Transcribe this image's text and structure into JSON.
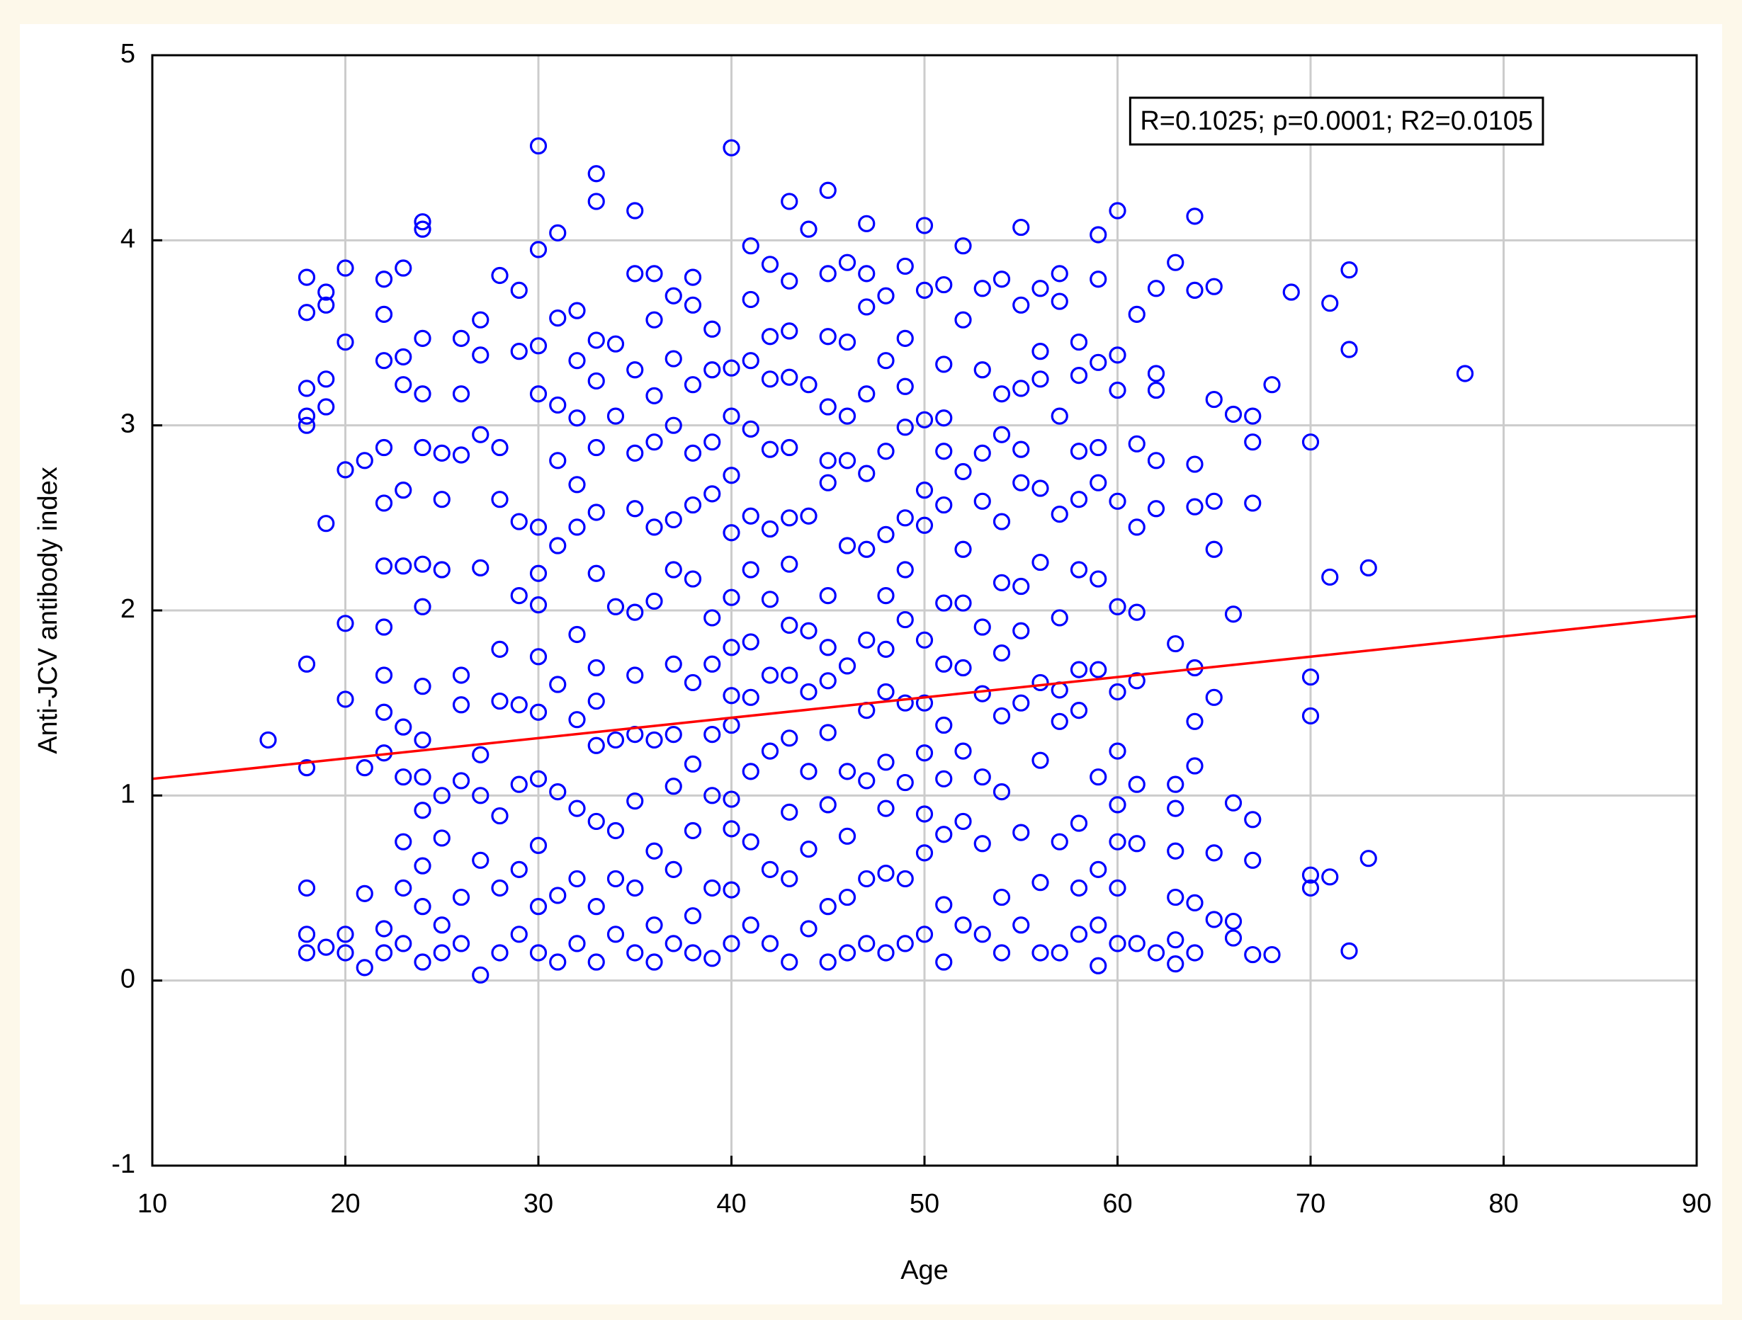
{
  "chart_data": {
    "type": "scatter",
    "x_label": "Age",
    "y_label": "Anti-JCV antibody index",
    "annotation": "R=0.1025; p=0.0001; R2=0.0105",
    "color": "#0000ff",
    "grid": true,
    "xlim": [
      10,
      90
    ],
    "xticks": [
      10,
      20,
      30,
      40,
      50,
      60,
      70,
      80,
      90
    ],
    "ylim": [
      -1,
      5
    ],
    "yticks": [
      -1,
      0,
      1,
      2,
      3,
      4,
      5
    ],
    "x": [
      16,
      18,
      18,
      18,
      18,
      18,
      18,
      18,
      18,
      18,
      18,
      19,
      19,
      19,
      19,
      19,
      19,
      20,
      20,
      20,
      20,
      20,
      20,
      20,
      21,
      21,
      21,
      21,
      22,
      22,
      22,
      22,
      22,
      22,
      22,
      22,
      22,
      22,
      22,
      22,
      23,
      23,
      23,
      23,
      23,
      23,
      23,
      23,
      23,
      23,
      24,
      24,
      24,
      24,
      24,
      24,
      24,
      24,
      24,
      24,
      24,
      24,
      24,
      24,
      25,
      25,
      25,
      25,
      25,
      25,
      25,
      26,
      26,
      26,
      26,
      26,
      26,
      26,
      26,
      27,
      27,
      27,
      27,
      27,
      27,
      27,
      27,
      28,
      28,
      28,
      28,
      28,
      28,
      28,
      28,
      29,
      29,
      29,
      29,
      29,
      29,
      29,
      29,
      30,
      30,
      30,
      30,
      30,
      30,
      30,
      30,
      30,
      30,
      30,
      30,
      30,
      31,
      31,
      31,
      31,
      31,
      31,
      31,
      31,
      31,
      32,
      32,
      32,
      32,
      32,
      32,
      32,
      32,
      32,
      32,
      33,
      33,
      33,
      33,
      33,
      33,
      33,
      33,
      33,
      33,
      33,
      33,
      33,
      34,
      34,
      34,
      34,
      34,
      34,
      34,
      35,
      35,
      35,
      35,
      35,
      35,
      35,
      35,
      35,
      35,
      35,
      36,
      36,
      36,
      36,
      36,
      36,
      36,
      36,
      36,
      36,
      37,
      37,
      37,
      37,
      37,
      37,
      37,
      37,
      37,
      37,
      38,
      38,
      38,
      38,
      38,
      38,
      38,
      38,
      38,
      38,
      38,
      39,
      39,
      39,
      39,
      39,
      39,
      39,
      39,
      39,
      39,
      40,
      40,
      40,
      40,
      40,
      40,
      40,
      40,
      40,
      40,
      40,
      40,
      40,
      41,
      41,
      41,
      41,
      41,
      41,
      41,
      41,
      41,
      41,
      41,
      42,
      42,
      42,
      42,
      42,
      42,
      42,
      42,
      42,
      42,
      43,
      43,
      43,
      43,
      43,
      43,
      43,
      43,
      43,
      43,
      43,
      43,
      43,
      44,
      44,
      44,
      44,
      44,
      44,
      44,
      44,
      45,
      45,
      45,
      45,
      45,
      45,
      45,
      45,
      45,
      45,
      45,
      45,
      45,
      46,
      46,
      46,
      46,
      46,
      46,
      46,
      46,
      46,
      46,
      47,
      47,
      47,
      47,
      47,
      47,
      47,
      47,
      47,
      47,
      47,
      48,
      48,
      48,
      48,
      48,
      48,
      48,
      48,
      48,
      48,
      48,
      49,
      49,
      49,
      49,
      49,
      49,
      49,
      49,
      49,
      49,
      49,
      50,
      50,
      50,
      50,
      50,
      50,
      50,
      50,
      50,
      50,
      50,
      51,
      51,
      51,
      51,
      51,
      51,
      51,
      51,
      51,
      51,
      51,
      51,
      52,
      52,
      52,
      52,
      52,
      52,
      52,
      52,
      52,
      53,
      53,
      53,
      53,
      53,
      53,
      53,
      53,
      53,
      54,
      54,
      54,
      54,
      54,
      54,
      54,
      54,
      54,
      54,
      55,
      55,
      55,
      55,
      55,
      55,
      55,
      55,
      55,
      55,
      56,
      56,
      56,
      56,
      56,
      56,
      56,
      56,
      56,
      57,
      57,
      57,
      57,
      57,
      57,
      57,
      57,
      57,
      58,
      58,
      58,
      58,
      58,
      58,
      58,
      58,
      58,
      58,
      59,
      59,
      59,
      59,
      59,
      59,
      59,
      59,
      59,
      59,
      59,
      60,
      60,
      60,
      60,
      60,
      60,
      60,
      60,
      60,
      60,
      60,
      61,
      61,
      61,
      61,
      61,
      61,
      61,
      61,
      62,
      62,
      62,
      62,
      62,
      62,
      63,
      63,
      63,
      63,
      63,
      63,
      63,
      63,
      64,
      64,
      64,
      64,
      64,
      64,
      64,
      64,
      64,
      65,
      65,
      65,
      65,
      65,
      65,
      65,
      66,
      66,
      66,
      66,
      66,
      67,
      67,
      67,
      67,
      67,
      67,
      68,
      68,
      69,
      70,
      70,
      70,
      70,
      70,
      71,
      71,
      71,
      72,
      72,
      72,
      73,
      73,
      78
    ],
    "values": [
      1.3,
      3.8,
      3.61,
      3.2,
      3.05,
      3.0,
      1.71,
      1.15,
      0.5,
      0.25,
      0.15,
      3.72,
      3.65,
      3.25,
      3.1,
      2.47,
      0.18,
      3.85,
      3.45,
      2.76,
      1.93,
      1.52,
      0.25,
      0.15,
      2.81,
      1.15,
      0.47,
      0.07,
      3.79,
      3.6,
      3.35,
      2.88,
      2.58,
      2.24,
      1.91,
      1.65,
      1.45,
      1.23,
      0.28,
      0.15,
      3.85,
      3.37,
      3.22,
      2.65,
      2.24,
      1.37,
      1.1,
      0.75,
      0.5,
      0.2,
      4.1,
      4.06,
      3.47,
      3.17,
      2.88,
      2.25,
      2.02,
      1.59,
      1.3,
      1.1,
      0.92,
      0.62,
      0.4,
      0.1,
      2.85,
      2.6,
      2.22,
      1.0,
      0.77,
      0.3,
      0.15,
      3.47,
      3.17,
      2.84,
      1.65,
      1.49,
      1.08,
      0.45,
      0.2,
      3.57,
      3.38,
      2.95,
      2.23,
      1.22,
      1.0,
      0.65,
      0.03,
      3.81,
      2.88,
      2.6,
      1.79,
      1.51,
      0.89,
      0.5,
      0.15,
      3.73,
      3.4,
      2.48,
      2.08,
      1.49,
      1.06,
      0.6,
      0.25,
      4.51,
      3.95,
      3.43,
      3.17,
      2.45,
      2.2,
      2.03,
      1.75,
      1.45,
      1.09,
      0.73,
      0.4,
      0.15,
      4.04,
      3.58,
      3.11,
      2.81,
      2.35,
      1.6,
      1.02,
      0.46,
      0.1,
      3.62,
      3.35,
      3.04,
      2.68,
      2.45,
      1.87,
      1.41,
      0.93,
      0.55,
      0.2,
      4.36,
      4.21,
      3.46,
      3.24,
      2.88,
      2.53,
      2.2,
      1.69,
      1.51,
      1.27,
      0.86,
      0.4,
      0.1,
      3.44,
      3.05,
      2.02,
      1.3,
      0.81,
      0.55,
      0.25,
      4.16,
      3.82,
      3.3,
      2.85,
      2.55,
      1.99,
      1.65,
      1.33,
      0.97,
      0.5,
      0.15,
      3.82,
      3.57,
      3.16,
      2.91,
      2.45,
      2.05,
      1.3,
      0.7,
      0.3,
      0.1,
      3.7,
      3.36,
      3.0,
      2.49,
      2.22,
      1.71,
      1.33,
      1.05,
      0.6,
      0.2,
      3.8,
      3.65,
      3.22,
      2.85,
      2.57,
      2.17,
      1.61,
      1.17,
      0.81,
      0.35,
      0.15,
      3.52,
      3.3,
      2.91,
      2.63,
      1.96,
      1.71,
      1.33,
      1.0,
      0.5,
      0.12,
      4.5,
      3.31,
      3.05,
      2.73,
      2.42,
      2.07,
      1.8,
      1.54,
      1.38,
      0.98,
      0.82,
      0.49,
      0.2,
      3.97,
      3.68,
      3.35,
      2.98,
      2.51,
      2.22,
      1.83,
      1.53,
      1.13,
      0.75,
      0.3,
      3.87,
      3.48,
      3.25,
      2.87,
      2.44,
      2.06,
      1.65,
      1.24,
      0.6,
      0.2,
      4.21,
      3.78,
      3.51,
      3.26,
      2.88,
      2.5,
      2.25,
      1.92,
      1.65,
      1.31,
      0.91,
      0.55,
      0.1,
      4.06,
      3.22,
      2.51,
      1.89,
      1.56,
      1.13,
      0.71,
      0.28,
      4.27,
      3.82,
      3.48,
      3.1,
      2.81,
      2.69,
      2.08,
      1.8,
      1.62,
      1.34,
      0.95,
      0.4,
      0.1,
      3.88,
      3.45,
      3.05,
      2.81,
      2.35,
      1.7,
      1.13,
      0.78,
      0.45,
      0.15,
      4.09,
      3.82,
      3.64,
      3.17,
      2.74,
      2.33,
      1.84,
      1.46,
      1.08,
      0.55,
      0.2,
      3.7,
      3.35,
      2.86,
      2.41,
      2.08,
      1.79,
      1.56,
      1.18,
      0.93,
      0.58,
      0.15,
      3.86,
      3.47,
      3.21,
      2.99,
      2.5,
      2.22,
      1.95,
      1.5,
      1.07,
      0.55,
      0.2,
      4.08,
      3.73,
      3.03,
      2.65,
      2.46,
      1.84,
      1.5,
      1.23,
      0.9,
      0.69,
      0.25,
      3.76,
      3.33,
      3.04,
      2.86,
      2.57,
      2.04,
      1.71,
      1.38,
      1.09,
      0.79,
      0.41,
      0.1,
      3.97,
      3.57,
      2.75,
      2.33,
      2.04,
      1.69,
      1.24,
      0.86,
      0.3,
      3.74,
      3.3,
      2.85,
      2.59,
      1.91,
      1.55,
      1.1,
      0.74,
      0.25,
      3.79,
      3.17,
      2.95,
      2.48,
      2.15,
      1.77,
      1.43,
      1.02,
      0.45,
      0.15,
      4.07,
      3.65,
      3.2,
      2.87,
      2.69,
      2.13,
      1.89,
      1.5,
      0.8,
      0.3,
      3.74,
      3.4,
      3.25,
      2.66,
      2.26,
      1.61,
      1.19,
      0.53,
      0.15,
      3.82,
      3.67,
      3.05,
      2.52,
      1.96,
      1.57,
      1.4,
      0.75,
      0.15,
      3.45,
      3.27,
      2.86,
      2.6,
      2.22,
      1.68,
      1.46,
      0.85,
      0.5,
      0.25,
      4.03,
      3.79,
      3.34,
      2.88,
      2.69,
      2.17,
      1.68,
      1.1,
      0.6,
      0.3,
      0.08,
      4.16,
      3.38,
      3.19,
      2.59,
      2.02,
      1.56,
      1.24,
      0.95,
      0.75,
      0.5,
      0.2,
      3.6,
      2.9,
      2.45,
      1.99,
      1.62,
      1.06,
      0.74,
      0.2,
      3.74,
      3.28,
      3.19,
      2.81,
      2.55,
      0.15,
      3.88,
      1.82,
      1.06,
      0.93,
      0.7,
      0.45,
      0.22,
      0.09,
      4.13,
      3.73,
      2.79,
      2.56,
      1.69,
      1.4,
      1.16,
      0.42,
      0.15,
      3.75,
      3.14,
      2.59,
      2.33,
      1.53,
      0.69,
      0.33,
      3.06,
      1.98,
      0.96,
      0.32,
      0.23,
      3.05,
      2.91,
      2.58,
      0.87,
      0.65,
      0.14,
      3.22,
      0.14,
      3.72,
      2.91,
      1.64,
      1.43,
      0.57,
      0.5,
      3.66,
      2.18,
      0.56,
      3.84,
      3.41,
      0.16,
      2.23,
      0.66,
      3.28
    ],
    "fit": {
      "color": "#ff0000",
      "x": [
        10,
        90
      ],
      "y": [
        1.09,
        1.97
      ]
    }
  }
}
